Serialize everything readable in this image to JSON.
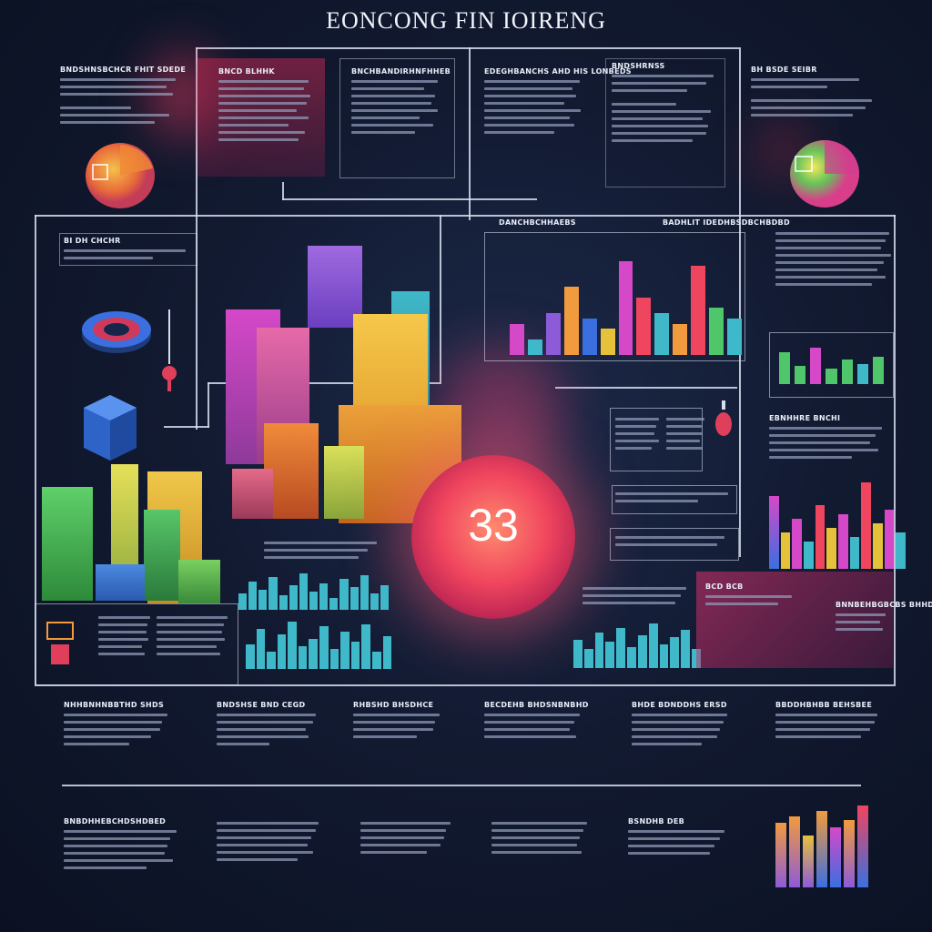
{
  "title": "EONCONG FIN IOIRENG",
  "orb_value": "33",
  "headings": {
    "h1": "BNDSHNSBCHCR FHIT SDEDE",
    "h2": "BNCD BLHHK",
    "h3": "BNCHBANDIRHNFHHEB",
    "h4": "EDEGHBANCHS AHD HIS LONBEDS",
    "h5": "BNDSHRNSS",
    "h6": "BH BSDE SEIBR",
    "h7": "BI DH CHCHR",
    "h8": "DANCHBCHHAEBS",
    "h9": "BADHLIT IDEDHBSDBCHBDBD",
    "h10": "EBNHHRE BNCHI",
    "h11": "BCD BCB",
    "h12": "BNNBEHBGBCBS BHHD",
    "h13": "NHHBNHNBBTHD SHDS",
    "h14": "BNDSHSE BND CEGD",
    "h15": "RHBSHD BHSDHCE",
    "h16": "BECDEHB BHDSNBNBHD",
    "h17": "BHDE BDNDDHS ERSD",
    "h18": "BBDDHBHBB BEHSBEE",
    "h19": "BNBDHHEBCHDSHDBED",
    "h20": "BSNDHB DEB"
  },
  "colors": {
    "pink": "#f0455e",
    "magenta": "#d548c8",
    "orange": "#f19a3e",
    "yellow": "#e6c13a",
    "green": "#4fc66a",
    "teal": "#3fb8c9",
    "blue": "#3b6fe0",
    "purple": "#8e5bd8",
    "line": "#d7def0"
  },
  "icons": [
    "pie-chart-icon",
    "donut-chart-icon",
    "disc-icon",
    "cube-icon",
    "pin-icon",
    "flask-icon",
    "robot-icon"
  ]
}
